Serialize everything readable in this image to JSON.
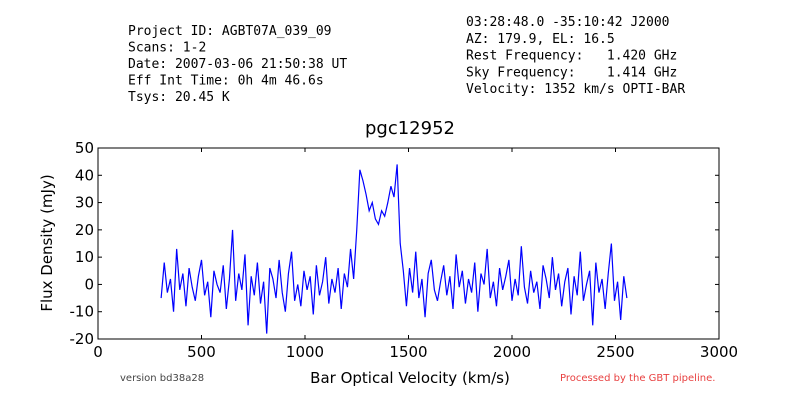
{
  "chart_data": {
    "type": "line",
    "title": "pgc12952",
    "annotations_left": [
      "Project ID: AGBT07A_039_09",
      "Scans: 1-2",
      "Date: 2007-03-06 21:50:38 UT",
      "Eff Int Time: 0h 4m 46.6s",
      "Tsys: 20.45 K"
    ],
    "annotations_right": [
      "03:28:48.0 -35:10:42 J2000",
      "AZ: 179.9, EL: 16.5",
      "Rest Frequency:   1.420 GHz",
      "Sky Frequency:    1.414 GHz",
      "Velocity: 1352 km/s OPTI-BAR"
    ],
    "footer_left": "version bd38a28",
    "footer_right": "Processed by the GBT pipeline.",
    "xlabel": "Bar Optical Velocity (km/s)",
    "ylabel": "Flux Density (mJy)",
    "xlim": [
      0,
      3000
    ],
    "xticks": [
      0,
      500,
      1000,
      1500,
      2000,
      2500,
      3000
    ],
    "ylim": [
      -20,
      50
    ],
    "yticks": [
      -20,
      -10,
      0,
      10,
      20,
      30,
      40,
      50
    ],
    "x": [
      305,
      320,
      335,
      350,
      365,
      380,
      395,
      410,
      425,
      440,
      455,
      470,
      485,
      500,
      515,
      530,
      545,
      560,
      575,
      590,
      605,
      620,
      635,
      650,
      665,
      680,
      695,
      710,
      725,
      740,
      755,
      770,
      785,
      800,
      815,
      830,
      845,
      860,
      875,
      890,
      905,
      920,
      935,
      950,
      965,
      980,
      995,
      1010,
      1025,
      1040,
      1055,
      1070,
      1085,
      1100,
      1115,
      1130,
      1145,
      1160,
      1175,
      1190,
      1205,
      1220,
      1235,
      1250,
      1265,
      1280,
      1295,
      1310,
      1325,
      1340,
      1355,
      1370,
      1385,
      1400,
      1415,
      1430,
      1445,
      1460,
      1475,
      1490,
      1505,
      1520,
      1535,
      1550,
      1565,
      1580,
      1595,
      1610,
      1625,
      1640,
      1655,
      1670,
      1685,
      1700,
      1715,
      1730,
      1745,
      1760,
      1775,
      1790,
      1805,
      1820,
      1835,
      1850,
      1865,
      1880,
      1895,
      1910,
      1925,
      1940,
      1955,
      1970,
      1985,
      2000,
      2015,
      2030,
      2045,
      2060,
      2075,
      2090,
      2105,
      2120,
      2135,
      2150,
      2165,
      2180,
      2195,
      2210,
      2225,
      2240,
      2255,
      2270,
      2285,
      2300,
      2315,
      2330,
      2345,
      2360,
      2375,
      2390,
      2405,
      2420,
      2435,
      2450,
      2465,
      2480,
      2495,
      2510,
      2525,
      2540,
      2555
    ],
    "series": [
      {
        "color": "#0000ff",
        "values": [
          -5,
          8,
          -3,
          2,
          -10,
          13,
          -2,
          4,
          -8,
          6,
          -1,
          -6,
          3,
          9,
          -4,
          1,
          -12,
          5,
          0,
          -3,
          7,
          -9,
          2,
          20,
          -6,
          4,
          -2,
          11,
          -15,
          3,
          -4,
          8,
          -7,
          1,
          -18,
          6,
          2,
          -5,
          9,
          -3,
          -10,
          4,
          12,
          -6,
          0,
          -8,
          5,
          -2,
          3,
          -11,
          7,
          -4,
          1,
          10,
          -7,
          2,
          -3,
          6,
          -9,
          4,
          -1,
          13,
          2,
          20,
          42,
          38,
          33,
          27,
          30,
          24,
          22,
          27,
          25,
          30,
          36,
          32,
          44,
          15,
          5,
          -8,
          6,
          -3,
          12,
          -5,
          2,
          -12,
          4,
          9,
          -2,
          -6,
          1,
          7,
          -4,
          3,
          -9,
          11,
          -1,
          5,
          -7,
          2,
          -3,
          8,
          -10,
          4,
          0,
          13,
          -5,
          1,
          -8,
          6,
          -2,
          3,
          9,
          -6,
          2,
          -4,
          14,
          -1,
          -7,
          5,
          -3,
          1,
          -9,
          7,
          2,
          -5,
          10,
          -2,
          4,
          -8,
          1,
          6,
          -11,
          3,
          -4,
          12,
          -6,
          0,
          5,
          -15,
          8,
          -3,
          2,
          -9,
          4,
          15,
          -6,
          1,
          -13,
          3,
          -5
        ]
      }
    ]
  }
}
